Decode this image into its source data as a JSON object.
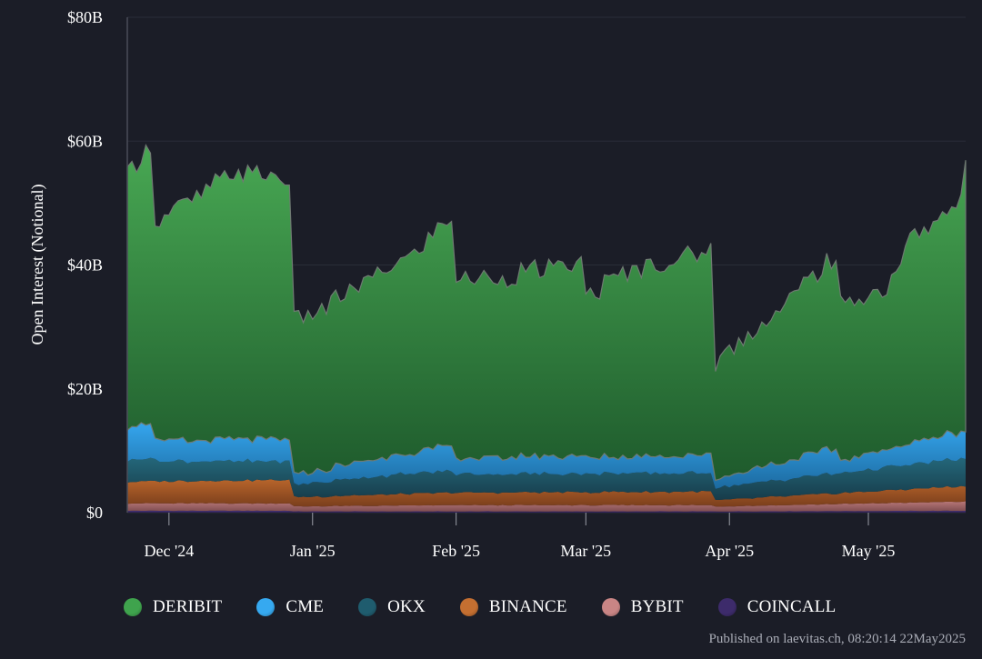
{
  "chart_data": {
    "type": "area",
    "stacked": true,
    "ylabel": "Open Interest (Notional)",
    "ylim": [
      0,
      80
    ],
    "yticks": [
      "$0",
      "$20B",
      "$40B",
      "$60B",
      "$80B"
    ],
    "ytick_values": [
      0,
      20,
      40,
      60,
      80
    ],
    "x_range": [
      "2024-11-22",
      "2025-05-22"
    ],
    "x_ticks": [
      {
        "label": "Dec '24",
        "date": "2024-12-01"
      },
      {
        "label": "Jan '25",
        "date": "2025-01-01"
      },
      {
        "label": "Feb '25",
        "date": "2025-02-01"
      },
      {
        "label": "Mar '25",
        "date": "2025-03-01"
      },
      {
        "label": "Apr '25",
        "date": "2025-04-01"
      },
      {
        "label": "May '25",
        "date": "2025-05-01"
      }
    ],
    "grid": "horizontal",
    "legend_position": "bottom-left",
    "series": [
      {
        "name": "COINCALL",
        "color": "#3b2a66",
        "points": [
          [
            "2024-11-22",
            0.3
          ],
          [
            "2024-12-27",
            0.3
          ],
          [
            "2024-12-28",
            0.2
          ],
          [
            "2025-03-28",
            0.2
          ],
          [
            "2025-05-22",
            0.3
          ]
        ]
      },
      {
        "name": "BYBIT",
        "color": "#b87878",
        "points": [
          [
            "2024-11-22",
            1.2
          ],
          [
            "2024-12-27",
            1.2
          ],
          [
            "2024-12-28",
            0.8
          ],
          [
            "2025-01-31",
            1.0
          ],
          [
            "2025-03-28",
            1.0
          ],
          [
            "2025-03-29",
            0.8
          ],
          [
            "2025-05-22",
            1.5
          ]
        ]
      },
      {
        "name": "BINANCE",
        "color": "#c46f31",
        "points": [
          [
            "2024-11-22",
            3.5
          ],
          [
            "2024-12-27",
            3.8
          ],
          [
            "2024-12-28",
            1.5
          ],
          [
            "2025-01-31",
            2.0
          ],
          [
            "2025-03-28",
            2.2
          ],
          [
            "2025-03-29",
            1.0
          ],
          [
            "2025-05-22",
            2.5
          ]
        ]
      },
      {
        "name": "OKX",
        "color": "#1f5c6e",
        "points": [
          [
            "2024-11-22",
            3.5
          ],
          [
            "2024-11-27",
            3.8
          ],
          [
            "2024-11-28",
            3.3
          ],
          [
            "2024-12-27",
            3.0
          ],
          [
            "2024-12-28",
            2.0
          ],
          [
            "2025-01-10",
            2.8
          ],
          [
            "2025-01-31",
            3.5
          ],
          [
            "2025-02-01",
            3.0
          ],
          [
            "2025-02-28",
            3.0
          ],
          [
            "2025-03-28",
            3.0
          ],
          [
            "2025-03-29",
            2.0
          ],
          [
            "2025-05-22",
            4.5
          ]
        ]
      },
      {
        "name": "CME",
        "color": "#2e9fe6",
        "points": [
          [
            "2024-11-22",
            5.5
          ],
          [
            "2024-11-27",
            5.8
          ],
          [
            "2024-11-28",
            3.2
          ],
          [
            "2024-12-15",
            3.5
          ],
          [
            "2024-12-27",
            3.5
          ],
          [
            "2024-12-28",
            1.5
          ],
          [
            "2025-01-10",
            2.5
          ],
          [
            "2025-01-31",
            4.0
          ],
          [
            "2025-02-01",
            2.5
          ],
          [
            "2025-02-28",
            3.0
          ],
          [
            "2025-03-01",
            2.5
          ],
          [
            "2025-03-28",
            3.0
          ],
          [
            "2025-03-29",
            1.5
          ],
          [
            "2025-04-24",
            4.0
          ],
          [
            "2025-04-25",
            2.0
          ],
          [
            "2025-05-22",
            4.5
          ]
        ]
      },
      {
        "name": "DERIBIT",
        "color": "#3f9b4c",
        "points": [
          [
            "2024-11-22",
            41
          ],
          [
            "2024-11-27",
            45
          ],
          [
            "2024-11-28",
            35
          ],
          [
            "2024-12-15",
            43
          ],
          [
            "2024-12-27",
            42
          ],
          [
            "2024-12-28",
            24.5
          ],
          [
            "2025-01-10",
            28
          ],
          [
            "2025-01-25",
            33
          ],
          [
            "2025-01-31",
            37
          ],
          [
            "2025-02-01",
            29
          ],
          [
            "2025-02-10",
            29
          ],
          [
            "2025-02-28",
            31
          ],
          [
            "2025-03-01",
            26
          ],
          [
            "2025-03-10",
            30
          ],
          [
            "2025-03-28",
            33
          ],
          [
            "2025-03-29",
            19
          ],
          [
            "2025-04-10",
            24
          ],
          [
            "2025-04-24",
            31
          ],
          [
            "2025-04-25",
            25
          ],
          [
            "2025-05-05",
            26
          ],
          [
            "2025-05-10",
            33
          ],
          [
            "2025-05-20",
            36
          ],
          [
            "2025-05-22",
            43
          ]
        ]
      }
    ]
  },
  "legend": [
    {
      "label": "DERIBIT",
      "color": "#3fa34d"
    },
    {
      "label": "CME",
      "color": "#36a9f0"
    },
    {
      "label": "OKX",
      "color": "#1f5c6e"
    },
    {
      "label": "BINANCE",
      "color": "#c46f31"
    },
    {
      "label": "BYBIT",
      "color": "#c98585"
    },
    {
      "label": "COINCALL",
      "color": "#3d2b6b"
    }
  ],
  "footer": {
    "text": "Published on laevitas.ch, 08:20:14 22May2025"
  }
}
